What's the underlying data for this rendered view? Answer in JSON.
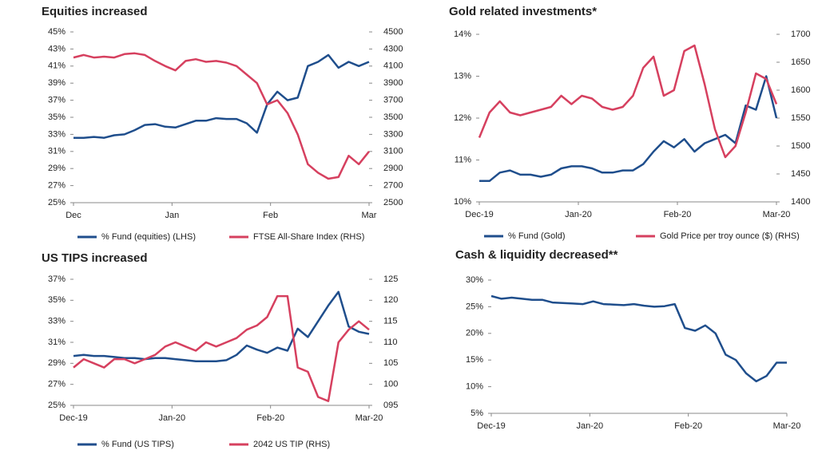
{
  "chart_data": [
    {
      "type": "line",
      "title": "Equities increased",
      "x_labels": [
        "Dec",
        "Jan",
        "Feb",
        "Mar"
      ],
      "ylim": [
        25,
        45
      ],
      "yticks": [
        {
          "value": 25,
          "label": "25%"
        },
        {
          "value": 27,
          "label": "27%"
        },
        {
          "value": 29,
          "label": "29%"
        },
        {
          "value": 31,
          "label": "31%"
        },
        {
          "value": 33,
          "label": "33%"
        },
        {
          "value": 35,
          "label": "35%"
        },
        {
          "value": 37,
          "label": "37%"
        },
        {
          "value": 39,
          "label": "39%"
        },
        {
          "value": 41,
          "label": "41%"
        },
        {
          "value": 43,
          "label": "43%"
        },
        {
          "value": 45,
          "label": "45%"
        }
      ],
      "y2lim": [
        2500,
        4500
      ],
      "y2ticks": [
        2500,
        2700,
        2900,
        3100,
        3300,
        3500,
        3700,
        3900,
        4100,
        4300,
        4500
      ],
      "series": [
        {
          "name": "% Fund (equities) (LHS)",
          "color": "#1f4e8c",
          "values": [
            32.6,
            32.6,
            32.7,
            32.6,
            32.9,
            33.0,
            33.5,
            34.1,
            34.2,
            33.9,
            33.8,
            34.2,
            34.6,
            34.6,
            34.9,
            34.8,
            34.8,
            34.3,
            33.2,
            36.5,
            38.0,
            37.0,
            37.3,
            41.0,
            41.5,
            42.3,
            40.8,
            41.5,
            41.0,
            41.5
          ]
        },
        {
          "name": "FTSE All-Share Index (RHS)",
          "color": "#d6405f",
          "axis": "y2",
          "values": [
            4200,
            4230,
            4200,
            4210,
            4200,
            4240,
            4250,
            4230,
            4160,
            4100,
            4050,
            4160,
            4180,
            4150,
            4160,
            4140,
            4100,
            4000,
            3900,
            3650,
            3700,
            3550,
            3300,
            2950,
            2850,
            2780,
            2800,
            3050,
            2950,
            3100
          ]
        }
      ]
    },
    {
      "type": "line",
      "title": "Gold related investments*",
      "x_labels": [
        "Dec-19",
        "Jan-20",
        "Feb-20",
        "Mar-20"
      ],
      "ylim": [
        10,
        14
      ],
      "yticks": [
        {
          "value": 10,
          "label": "10%"
        },
        {
          "value": 11,
          "label": "11%"
        },
        {
          "value": 12,
          "label": "12%"
        },
        {
          "value": 13,
          "label": "13%"
        },
        {
          "value": 14,
          "label": "14%"
        }
      ],
      "y2lim": [
        1400,
        1700
      ],
      "y2ticks": [
        1400,
        1450,
        1500,
        1550,
        1600,
        1650,
        1700
      ],
      "series": [
        {
          "name": "% Fund (Gold)",
          "color": "#1f4e8c",
          "values": [
            10.5,
            10.5,
            10.7,
            10.75,
            10.65,
            10.65,
            10.6,
            10.65,
            10.8,
            10.85,
            10.85,
            10.8,
            10.7,
            10.7,
            10.75,
            10.75,
            10.9,
            11.2,
            11.45,
            11.3,
            11.5,
            11.2,
            11.4,
            11.5,
            11.6,
            11.4,
            12.3,
            12.2,
            13.0,
            12.0
          ]
        },
        {
          "name": "Gold Price per troy ounce ($) (RHS)",
          "color": "#d6405f",
          "axis": "y2",
          "values": [
            1515,
            1560,
            1580,
            1560,
            1555,
            1560,
            1565,
            1570,
            1590,
            1575,
            1590,
            1585,
            1570,
            1565,
            1570,
            1590,
            1640,
            1660,
            1590,
            1600,
            1670,
            1680,
            1610,
            1530,
            1480,
            1500,
            1560,
            1630,
            1620,
            1575
          ]
        }
      ]
    },
    {
      "type": "line",
      "title": "US TIPS increased",
      "x_labels": [
        "Dec-19",
        "Jan-20",
        "Feb-20",
        "Mar-20"
      ],
      "ylim": [
        25,
        37
      ],
      "yticks": [
        {
          "value": 25,
          "label": "25%"
        },
        {
          "value": 27,
          "label": "27%"
        },
        {
          "value": 29,
          "label": "29%"
        },
        {
          "value": 31,
          "label": "31%"
        },
        {
          "value": 33,
          "label": "33%"
        },
        {
          "value": 35,
          "label": "35%"
        },
        {
          "value": 37,
          "label": "37%"
        }
      ],
      "y2lim": [
        95,
        125
      ],
      "y2ticks": [
        {
          "value": 95,
          "label": "095"
        },
        100,
        105,
        110,
        115,
        120,
        125
      ],
      "series": [
        {
          "name": "% Fund (US TIPS)",
          "color": "#1f4e8c",
          "values": [
            29.7,
            29.8,
            29.7,
            29.7,
            29.6,
            29.5,
            29.5,
            29.4,
            29.5,
            29.5,
            29.4,
            29.3,
            29.2,
            29.2,
            29.2,
            29.3,
            29.8,
            30.7,
            30.3,
            30.0,
            30.5,
            30.2,
            32.3,
            31.5,
            33.0,
            34.5,
            35.8,
            32.5,
            32.0,
            31.8
          ]
        },
        {
          "name": "2042 US TIP (RHS)",
          "color": "#d6405f",
          "axis": "y2",
          "values": [
            104,
            106,
            105,
            104,
            106,
            106,
            105,
            106,
            107,
            109,
            110,
            109,
            108,
            110,
            109,
            110,
            111,
            113,
            114,
            116,
            121,
            121,
            104,
            103,
            97,
            96,
            110,
            113,
            115,
            113
          ]
        }
      ]
    },
    {
      "type": "line",
      "title": "Cash & liquidity decreased**",
      "x_labels": [
        "Dec-19",
        "Jan-20",
        "Feb-20",
        "Mar-20"
      ],
      "ylim": [
        5,
        30
      ],
      "yticks": [
        {
          "value": 5,
          "label": "5%"
        },
        {
          "value": 10,
          "label": "10%"
        },
        {
          "value": 15,
          "label": "15%"
        },
        {
          "value": 20,
          "label": "20%"
        },
        {
          "value": 25,
          "label": "25%"
        },
        {
          "value": 30,
          "label": "30%"
        }
      ],
      "series": [
        {
          "color": "#1f4e8c",
          "values": [
            27,
            26.5,
            26.7,
            26.5,
            26.3,
            26.3,
            25.8,
            25.7,
            25.6,
            25.5,
            26,
            25.5,
            25.4,
            25.3,
            25.5,
            25.2,
            25,
            25.1,
            25.5,
            21,
            20.5,
            21.5,
            20,
            16,
            15,
            12.5,
            11,
            12,
            14.5,
            14.5
          ]
        }
      ]
    }
  ]
}
